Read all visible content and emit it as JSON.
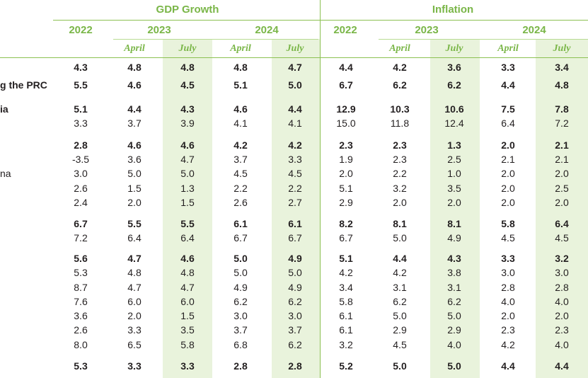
{
  "header": {
    "groups": [
      "GDP Growth",
      "Inflation"
    ],
    "years": [
      "2022",
      "2023",
      "2024",
      "2022",
      "2023",
      "2024"
    ],
    "subheads": [
      "April",
      "July",
      "April",
      "July",
      "April",
      "July",
      "April",
      "July"
    ]
  },
  "row_labels": [
    "",
    "g the PRC",
    "ia",
    "",
    "",
    "",
    "na",
    "",
    "",
    "",
    "",
    "",
    "",
    "",
    "",
    "",
    "",
    "",
    ""
  ],
  "rows": [
    {
      "bold": true,
      "cells": [
        "4.3",
        "4.8",
        "4.8",
        "4.8",
        "4.7",
        "4.4",
        "4.2",
        "3.6",
        "3.3",
        "3.4"
      ]
    },
    {
      "bold": true,
      "cells": [
        "5.5",
        "4.6",
        "4.5",
        "5.1",
        "5.0",
        "6.7",
        "6.2",
        "6.2",
        "4.4",
        "4.8"
      ]
    },
    {
      "bold": true,
      "cells": [
        "5.1",
        "4.4",
        "4.3",
        "4.6",
        "4.4",
        "12.9",
        "10.3",
        "10.6",
        "7.5",
        "7.8"
      ]
    },
    {
      "bold": false,
      "cells": [
        "3.3",
        "3.7",
        "3.9",
        "4.1",
        "4.1",
        "15.0",
        "11.8",
        "12.4",
        "6.4",
        "7.2"
      ]
    },
    {
      "bold": true,
      "cells": [
        "2.8",
        "4.6",
        "4.6",
        "4.2",
        "4.2",
        "2.3",
        "2.3",
        "1.3",
        "2.0",
        "2.1"
      ]
    },
    {
      "bold": false,
      "cells": [
        "-3.5",
        "3.6",
        "4.7",
        "3.7",
        "3.3",
        "1.9",
        "2.3",
        "2.5",
        "2.1",
        "2.1"
      ]
    },
    {
      "bold": false,
      "cells": [
        "3.0",
        "5.0",
        "5.0",
        "4.5",
        "4.5",
        "2.0",
        "2.2",
        "1.0",
        "2.0",
        "2.0"
      ]
    },
    {
      "bold": false,
      "cells": [
        "2.6",
        "1.5",
        "1.3",
        "2.2",
        "2.2",
        "5.1",
        "3.2",
        "3.5",
        "2.0",
        "2.5"
      ]
    },
    {
      "bold": false,
      "cells": [
        "2.4",
        "2.0",
        "1.5",
        "2.6",
        "2.7",
        "2.9",
        "2.0",
        "2.0",
        "2.0",
        "2.0"
      ]
    },
    {
      "bold": true,
      "cells": [
        "6.7",
        "5.5",
        "5.5",
        "6.1",
        "6.1",
        "8.2",
        "8.1",
        "8.1",
        "5.8",
        "6.4"
      ]
    },
    {
      "bold": false,
      "cells": [
        "7.2",
        "6.4",
        "6.4",
        "6.7",
        "6.7",
        "6.7",
        "5.0",
        "4.9",
        "4.5",
        "4.5"
      ]
    },
    {
      "bold": true,
      "cells": [
        "5.6",
        "4.7",
        "4.6",
        "5.0",
        "4.9",
        "5.1",
        "4.4",
        "4.3",
        "3.3",
        "3.2"
      ]
    },
    {
      "bold": false,
      "cells": [
        "5.3",
        "4.8",
        "4.8",
        "5.0",
        "5.0",
        "4.2",
        "4.2",
        "3.8",
        "3.0",
        "3.0"
      ]
    },
    {
      "bold": false,
      "cells": [
        "8.7",
        "4.7",
        "4.7",
        "4.9",
        "4.9",
        "3.4",
        "3.1",
        "3.1",
        "2.8",
        "2.8"
      ]
    },
    {
      "bold": false,
      "cells": [
        "7.6",
        "6.0",
        "6.0",
        "6.2",
        "6.2",
        "5.8",
        "6.2",
        "6.2",
        "4.0",
        "4.0"
      ]
    },
    {
      "bold": false,
      "cells": [
        "3.6",
        "2.0",
        "1.5",
        "3.0",
        "3.0",
        "6.1",
        "5.0",
        "5.0",
        "2.0",
        "2.0"
      ]
    },
    {
      "bold": false,
      "cells": [
        "2.6",
        "3.3",
        "3.5",
        "3.7",
        "3.7",
        "6.1",
        "2.9",
        "2.9",
        "2.3",
        "2.3"
      ]
    },
    {
      "bold": false,
      "cells": [
        "8.0",
        "6.5",
        "5.8",
        "6.8",
        "6.2",
        "3.2",
        "4.5",
        "4.0",
        "4.2",
        "4.0"
      ]
    },
    {
      "bold": true,
      "cells": [
        "5.3",
        "3.3",
        "3.3",
        "2.8",
        "2.8",
        "5.2",
        "5.0",
        "5.0",
        "4.4",
        "4.4"
      ]
    }
  ],
  "colors": {
    "accent": "#7ab648",
    "band": "#e9f3dc",
    "rule": "#8cc152",
    "text": "#231f20"
  }
}
